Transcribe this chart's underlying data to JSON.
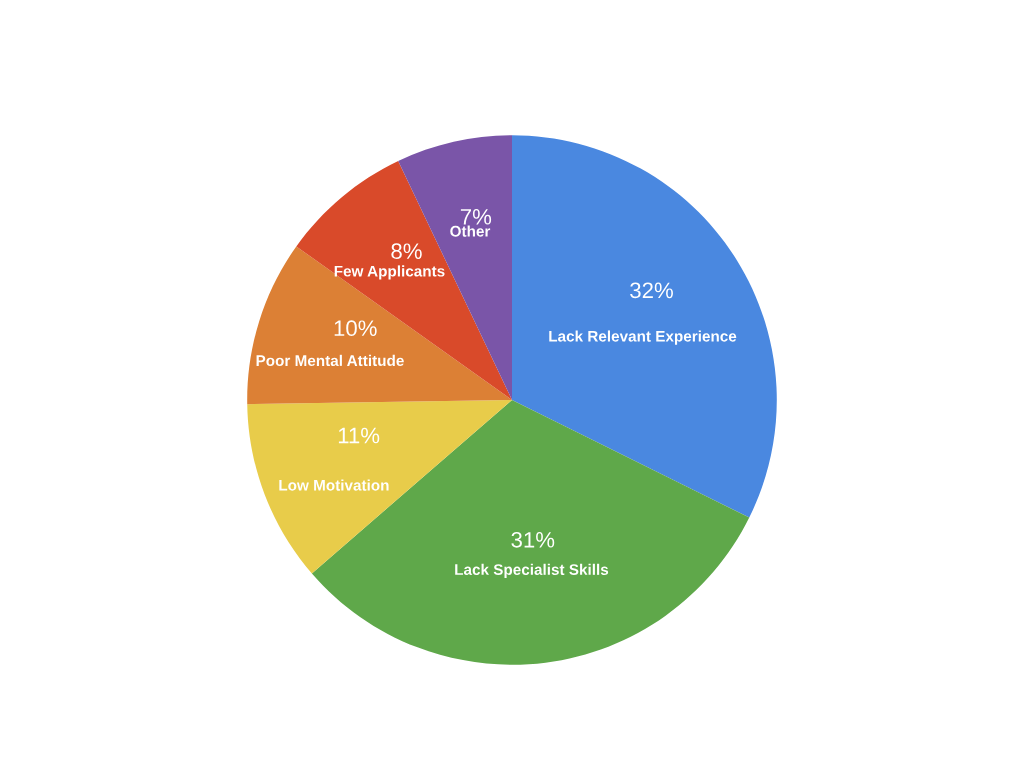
{
  "chart_data": {
    "type": "pie",
    "categories": [
      "Lack Relevant Experience",
      "Lack Specialist Skills",
      "Low Motivation",
      "Poor Mental Attitude",
      "Few Applicants",
      "Other"
    ],
    "values": [
      32,
      31,
      11,
      10,
      8,
      7
    ],
    "value_labels": [
      "32%",
      "31%",
      "11%",
      "10%",
      "8%",
      "7%"
    ],
    "colors": [
      "#4a88e0",
      "#5fa84a",
      "#e8cc4a",
      "#dc8035",
      "#d94a2a",
      "#7a55a8"
    ]
  }
}
